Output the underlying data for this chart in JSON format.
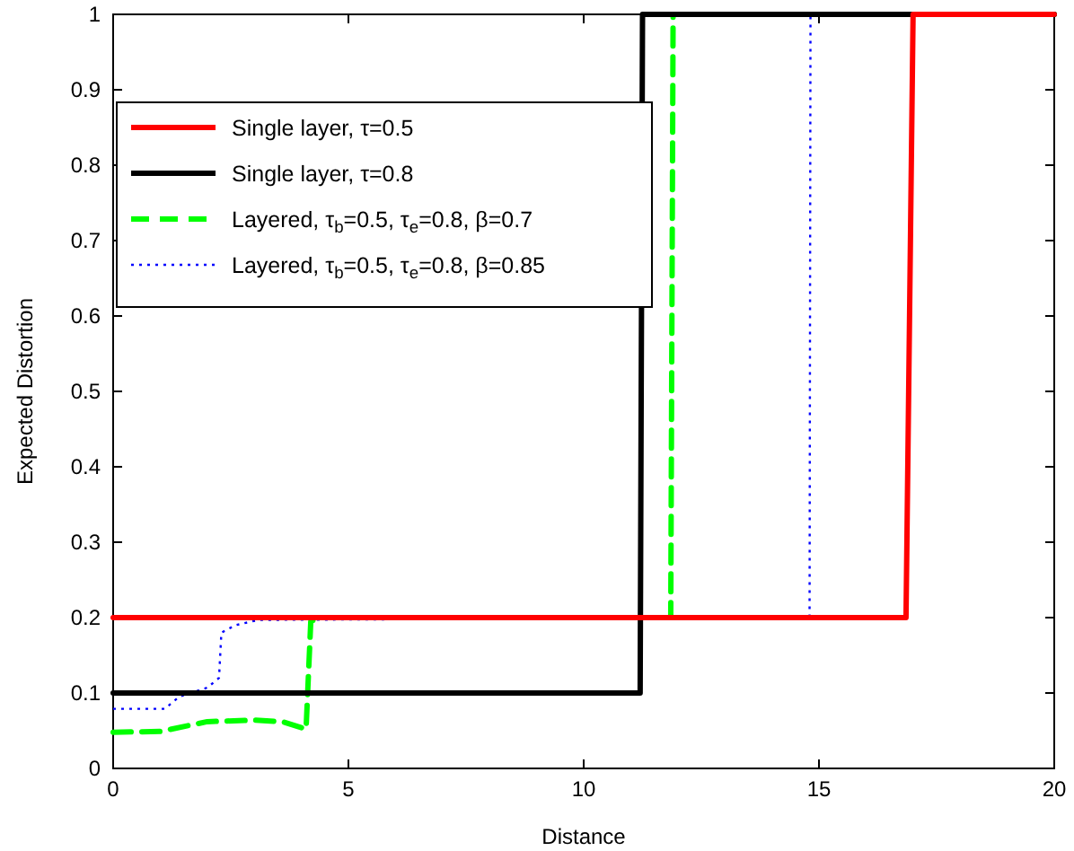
{
  "chart_data": {
    "type": "line",
    "xlabel": "Distance",
    "ylabel": "Expected Distortion",
    "xlim": [
      0,
      20
    ],
    "xticks": [
      0,
      5,
      10,
      15,
      20
    ],
    "ylim": [
      0,
      1
    ],
    "yticks": [
      0,
      0.1,
      0.2,
      0.3,
      0.4,
      0.5,
      0.6,
      0.7,
      0.8,
      0.9,
      1
    ],
    "legend": "top left",
    "grid": false,
    "series": [
      {
        "name": "Single layer, τ=0.5",
        "color": "#ff0000",
        "line_style": "solid",
        "x": [
          0,
          16.85,
          17.0,
          20
        ],
        "values": [
          0.2,
          0.2,
          1,
          1
        ]
      },
      {
        "name": "Single layer, τ=0.8",
        "color": "#000000",
        "line_style": "solid",
        "x": [
          0,
          11.2,
          11.25,
          20
        ],
        "values": [
          0.1,
          0.1,
          1,
          1
        ]
      },
      {
        "name": "Layered, τ$_{b}$=0.5, τ$_{e}$=0.8, β=0.7",
        "color": "#00ff00",
        "line_style": "dashed",
        "x": [
          0,
          1,
          2,
          3,
          3.6,
          4.1,
          4.2,
          4.4,
          11.85,
          11.9,
          20
        ],
        "values": [
          0.048,
          0.049,
          0.062,
          0.064,
          0.062,
          0.052,
          0.195,
          0.2,
          0.2,
          1,
          1
        ]
      },
      {
        "name": "Layered, τ$_{b}$=0.5, τ$_{e}$=0.8, β=0.85",
        "color": "#0000ff",
        "line_style": "dotted",
        "x": [
          0,
          1.1,
          1.4,
          2,
          2.25,
          2.3,
          2.6,
          3.1,
          14.8,
          14.82,
          20
        ],
        "values": [
          0.079,
          0.079,
          0.095,
          0.107,
          0.12,
          0.18,
          0.19,
          0.197,
          0.2,
          1,
          1
        ]
      }
    ]
  }
}
